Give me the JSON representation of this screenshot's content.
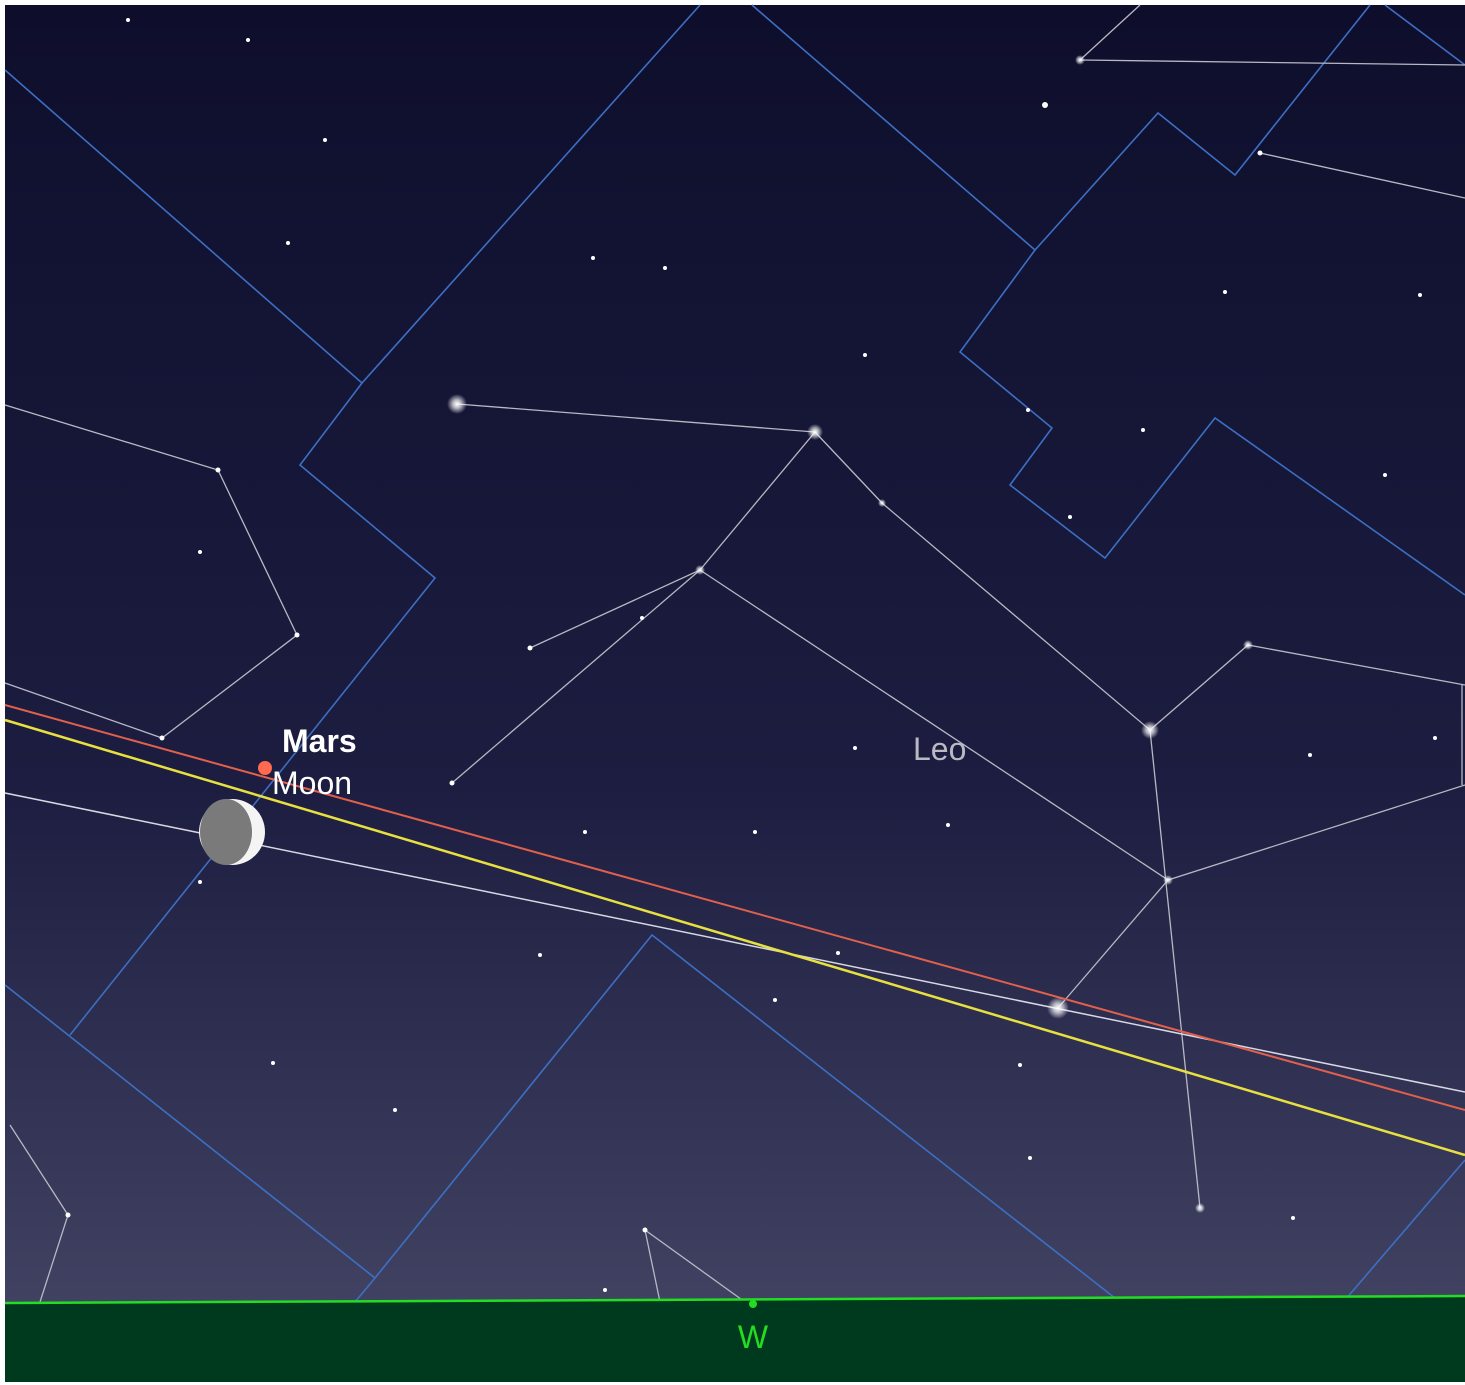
{
  "labels": {
    "planet": "Mars",
    "moon": "Moon",
    "constellation": "Leo",
    "direction": "W"
  }
}
